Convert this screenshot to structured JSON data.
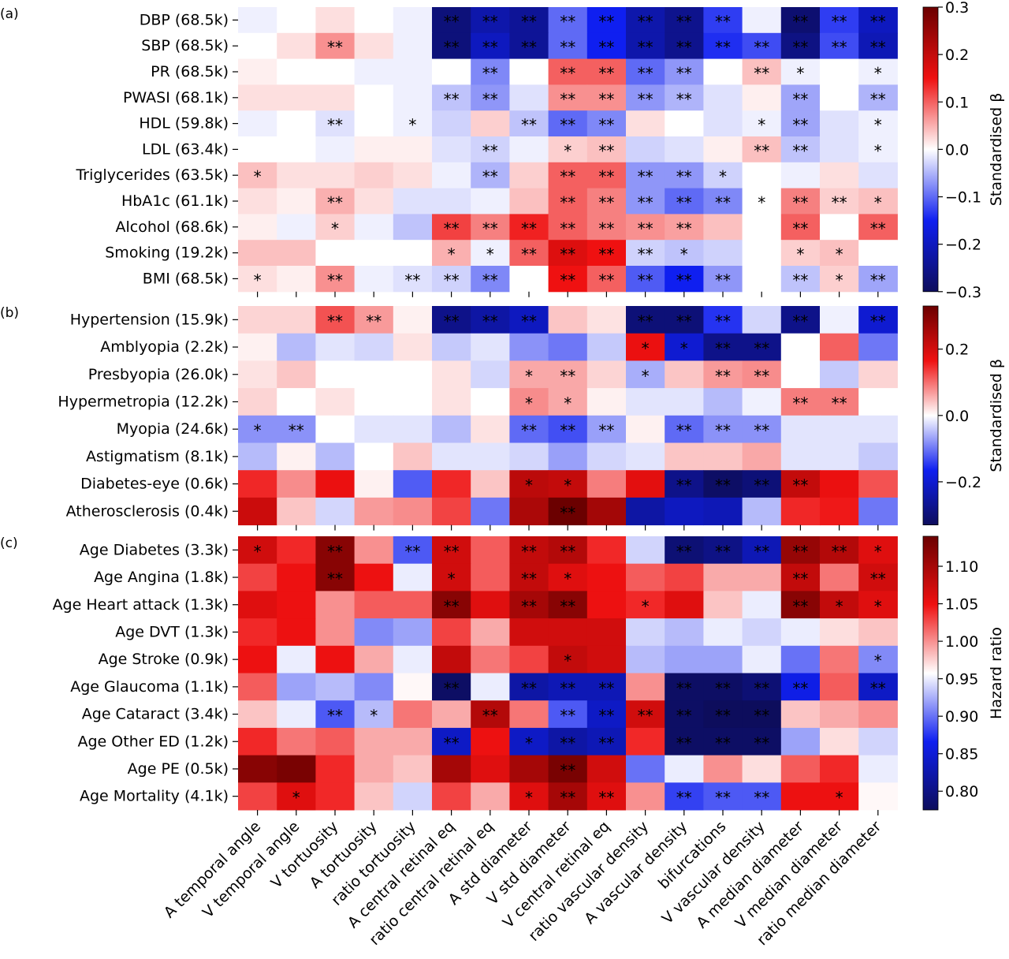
{
  "columns": [
    "A temporal angle",
    "V temporal angle",
    "V tortuosity",
    "A tortuosity",
    "ratio tortuosity",
    "A central retinal eq",
    "ratio central retinal eq",
    "A std diameter",
    "V std diameter",
    "V central retinal eq",
    "ratio vascular density",
    "A vascular density",
    "bifurcations",
    "V vascular density",
    "A median diameter",
    "V median diameter",
    "ratio median diameter"
  ],
  "colors": {
    "neg_dark": "#0d0d5c",
    "neg": "#0f1ff0",
    "neutral": "#ffffff",
    "pos": "#ef1111",
    "pos_dark": "#6b0000",
    "sig_light_text": "#ffffff",
    "sig_dark_text": "#000000"
  },
  "chart_data": [
    {
      "type": "heatmap",
      "panel_label": "(a)",
      "colorbar_label": "Standardised β",
      "vmin": -0.3,
      "vmax": 0.3,
      "colorbar_ticks": [
        "0.3",
        "0.2",
        "0.1",
        "0.0",
        "−0.1",
        "−0.2",
        "−0.3"
      ],
      "colorbar_tick_values": [
        0.3,
        0.2,
        0.1,
        0.0,
        -0.1,
        -0.2,
        -0.3
      ],
      "rows": [
        "DBP (68.5k)",
        "SBP (68.5k)",
        "PR (68.5k)",
        "PWASI (68.1k)",
        "HDL (59.8k)",
        "LDL (63.4k)",
        "Triglycerides (63.5k)",
        "HbA1c (61.1k)",
        "Alcohol (68.6k)",
        "Smoking (19.2k)",
        "BMI (68.5k)"
      ],
      "values": [
        [
          -0.01,
          0,
          0.02,
          0,
          -0.01,
          -0.27,
          -0.22,
          -0.24,
          -0.1,
          -0.15,
          -0.22,
          -0.25,
          -0.13,
          -0.01,
          -0.28,
          -0.13,
          -0.2
        ],
        [
          0,
          0.02,
          0.07,
          0.02,
          -0.01,
          -0.27,
          -0.2,
          -0.24,
          -0.1,
          -0.15,
          -0.22,
          -0.25,
          -0.14,
          -0.12,
          -0.26,
          -0.12,
          -0.21
        ],
        [
          0.01,
          0,
          0,
          -0.01,
          -0.01,
          0,
          -0.08,
          0,
          0.1,
          0.1,
          -0.1,
          -0.07,
          0,
          0.04,
          -0.01,
          0,
          -0.01
        ],
        [
          0.02,
          0.02,
          0.02,
          0,
          -0.01,
          -0.04,
          -0.07,
          -0.02,
          0.07,
          0.07,
          -0.07,
          -0.05,
          -0.02,
          0.01,
          -0.06,
          0,
          -0.05
        ],
        [
          -0.01,
          0,
          -0.02,
          0,
          -0.01,
          -0.03,
          0.03,
          -0.04,
          -0.1,
          -0.08,
          0.02,
          0,
          -0.02,
          -0.01,
          -0.06,
          -0.02,
          -0.01
        ],
        [
          0,
          0,
          -0.01,
          0.01,
          0.01,
          -0.02,
          -0.03,
          -0.01,
          0.03,
          0.04,
          -0.03,
          -0.02,
          0.01,
          0.04,
          -0.04,
          -0.02,
          -0.01
        ],
        [
          0.04,
          0.02,
          0.02,
          0.03,
          0.02,
          -0.01,
          -0.05,
          0.03,
          0.1,
          0.1,
          -0.07,
          -0.07,
          -0.03,
          0,
          -0.01,
          0.02,
          -0.02
        ],
        [
          0.02,
          0.01,
          0.05,
          0.02,
          -0.02,
          -0.02,
          -0.01,
          0.04,
          0.1,
          0.08,
          -0.07,
          -0.1,
          -0.08,
          0,
          0.08,
          0.03,
          0.04
        ],
        [
          0.01,
          -0.01,
          0.03,
          -0.01,
          -0.04,
          0.12,
          0.08,
          0.14,
          0.1,
          0.08,
          0.07,
          0.06,
          0.04,
          0,
          0.1,
          0,
          0.1
        ],
        [
          0.04,
          0.04,
          0,
          0,
          0,
          0.05,
          -0.01,
          0.1,
          0.17,
          0.15,
          -0.03,
          -0.04,
          -0.03,
          0,
          0.03,
          0.04,
          0
        ],
        [
          0.02,
          0.01,
          0.07,
          -0.01,
          -0.02,
          -0.03,
          -0.08,
          0,
          0.15,
          0.1,
          -0.11,
          -0.15,
          -0.07,
          0,
          -0.04,
          0.03,
          -0.06
        ]
      ],
      "significance": [
        [
          "",
          "",
          "",
          "",
          "",
          "**",
          "**",
          "**",
          "**",
          "**",
          "**",
          "**",
          "**",
          "",
          "**",
          "**",
          "**"
        ],
        [
          "",
          "",
          "**",
          "",
          "",
          "**",
          "**",
          "**",
          "**",
          "**",
          "**",
          "**",
          "**",
          "**",
          "**",
          "**",
          "**"
        ],
        [
          "",
          "",
          "",
          "",
          "",
          "",
          "**",
          "",
          "**",
          "**",
          "**",
          "**",
          "",
          "**",
          "*",
          "",
          "*"
        ],
        [
          "",
          "",
          "",
          "",
          "",
          "**",
          "**",
          "",
          "**",
          "**",
          "**",
          "**",
          "",
          "",
          "**",
          "",
          "**"
        ],
        [
          "",
          "",
          "**",
          "",
          "*",
          "",
          "",
          "**",
          "**",
          "**",
          "",
          "",
          "",
          "*",
          "**",
          "",
          "*"
        ],
        [
          "",
          "",
          "",
          "",
          "",
          "",
          "**",
          "",
          "*",
          "**",
          "",
          "",
          "",
          "**",
          "**",
          "",
          "*"
        ],
        [
          "*",
          "",
          "",
          "",
          "",
          "",
          "**",
          "",
          "**",
          "**",
          "**",
          "**",
          "*",
          "",
          "",
          "",
          ""
        ],
        [
          "",
          "",
          "**",
          "",
          "",
          "",
          "",
          "",
          "**",
          "**",
          "**",
          "**",
          "**",
          "*",
          "**",
          "**",
          "*"
        ],
        [
          "",
          "",
          "*",
          "",
          "",
          "**",
          "**",
          "**",
          "**",
          "**",
          "**",
          "**",
          "",
          "",
          "**",
          "",
          "**"
        ],
        [
          "",
          "",
          "",
          "",
          "",
          "*",
          "*",
          "**",
          "**",
          "**",
          "**",
          "*",
          "",
          "",
          "*",
          "*",
          ""
        ],
        [
          "*",
          "",
          "**",
          "",
          "**",
          "**",
          "**",
          "",
          "**",
          "**",
          "**",
          "**",
          "**",
          "",
          "**",
          "*",
          "**"
        ]
      ]
    },
    {
      "type": "heatmap",
      "panel_label": "(b)",
      "colorbar_label": "Standardised β",
      "vmin": -0.33,
      "vmax": 0.33,
      "colorbar_ticks": [
        "0.2",
        "0.0",
        "−0.2"
      ],
      "colorbar_tick_values": [
        0.2,
        0.0,
        -0.2
      ],
      "rows": [
        "Hypertension (15.9k)",
        "Amblyopia (2.2k)",
        "Presbyopia (26.0k)",
        "Hypermetropia (12.2k)",
        "Myopia (24.6k)",
        "Astigmatism (8.1k)",
        "Diabetes-eye (0.6k)",
        "Atherosclerosis (0.4k)"
      ],
      "values": [
        [
          0.03,
          0.03,
          0.12,
          0.07,
          0.01,
          -0.28,
          -0.25,
          -0.22,
          0.04,
          0.02,
          -0.3,
          -0.3,
          -0.15,
          -0.03,
          -0.28,
          -0.01,
          -0.2
        ],
        [
          0.01,
          -0.05,
          -0.02,
          -0.03,
          0.02,
          -0.04,
          -0.02,
          -0.08,
          -0.1,
          -0.04,
          0.17,
          -0.2,
          -0.28,
          -0.28,
          0,
          0.11,
          -0.1
        ],
        [
          0.02,
          0.04,
          0,
          0,
          0,
          0.02,
          -0.03,
          0.06,
          0.06,
          0.03,
          -0.06,
          0.04,
          0.07,
          0.08,
          0,
          -0.04,
          0.03
        ],
        [
          0.03,
          0,
          0.02,
          0,
          0,
          0.02,
          0,
          0.08,
          0.06,
          0.01,
          -0.02,
          -0.02,
          -0.05,
          -0.01,
          0.09,
          0.09,
          0
        ],
        [
          -0.08,
          -0.08,
          0,
          -0.02,
          -0.02,
          -0.05,
          0.02,
          -0.11,
          -0.13,
          -0.07,
          0.01,
          -0.11,
          -0.08,
          -0.08,
          -0.02,
          -0.02,
          -0.02
        ],
        [
          -0.05,
          0.01,
          -0.05,
          0,
          0.04,
          -0.02,
          -0.02,
          -0.03,
          -0.07,
          -0.03,
          -0.02,
          0.04,
          0.04,
          0.06,
          -0.02,
          -0.02,
          -0.04
        ],
        [
          0.15,
          0.08,
          0.17,
          0.01,
          -0.12,
          0.15,
          0.04,
          0.23,
          0.22,
          0.09,
          0.18,
          -0.28,
          -0.32,
          -0.3,
          0.22,
          0.17,
          0.12
        ],
        [
          0.21,
          0.04,
          -0.03,
          0.07,
          0.08,
          0.13,
          -0.1,
          0.25,
          0.33,
          0.26,
          -0.25,
          -0.22,
          -0.23,
          -0.05,
          0.15,
          0.16,
          -0.1
        ]
      ],
      "significance": [
        [
          "",
          "",
          "**",
          "**",
          "",
          "**",
          "**",
          "**",
          "",
          "",
          "**",
          "**",
          "**",
          "",
          "**",
          "",
          "**"
        ],
        [
          "",
          "",
          "",
          "",
          "",
          "",
          "",
          "",
          "",
          "",
          "*",
          "*",
          "**",
          "**",
          "",
          "",
          ""
        ],
        [
          "",
          "",
          "",
          "",
          "",
          "",
          "",
          "*",
          "**",
          "",
          "*",
          "",
          "**",
          "**",
          "",
          "",
          ""
        ],
        [
          "",
          "",
          "",
          "",
          "",
          "",
          "",
          "*",
          "*",
          "",
          "",
          "",
          "",
          "",
          "**",
          "**",
          ""
        ],
        [
          "*",
          "**",
          "",
          "",
          "",
          "",
          "",
          "**",
          "**",
          "**",
          "",
          "**",
          "**",
          "**",
          "",
          "",
          ""
        ],
        [
          "",
          "",
          "",
          "",
          "",
          "",
          "",
          "",
          "",
          "",
          "",
          "",
          "",
          "",
          "",
          "",
          ""
        ],
        [
          "",
          "",
          "",
          "",
          "",
          "",
          "",
          "*",
          "*",
          "",
          "",
          "**",
          "**",
          "**",
          "**",
          "",
          ""
        ],
        [
          "",
          "",
          "",
          "",
          "",
          "",
          "",
          "",
          "**",
          "",
          "",
          "",
          "",
          "",
          "",
          "",
          ""
        ]
      ]
    },
    {
      "type": "heatmap",
      "panel_label": "(c)",
      "colorbar_label": "Hazard ratio",
      "vmin": 0.775,
      "vmax": 1.14,
      "colorbar_ticks": [
        "1.10",
        "1.05",
        "1.00",
        "0.95",
        "0.90",
        "0.85",
        "0.80"
      ],
      "colorbar_tick_values": [
        1.1,
        1.05,
        1.0,
        0.95,
        0.9,
        0.85,
        0.8
      ],
      "rows": [
        "Age Diabetes (3.3k)",
        "Age Angina (1.8k)",
        "Age Heart attack (1.3k)",
        "Age DVT (1.3k)",
        "Age Stroke (0.9k)",
        "Age Glaucoma (1.1k)",
        "Age Cataract (3.4k)",
        "Age Other ED (1.2k)",
        "Age PE (0.5k)",
        "Age Mortality (4.1k)"
      ],
      "values": [
        [
          1.07,
          1.04,
          1.12,
          1.0,
          0.89,
          1.07,
          1.02,
          1.08,
          1.09,
          1.04,
          0.94,
          0.79,
          0.8,
          0.83,
          1.11,
          1.09,
          1.06
        ],
        [
          1.03,
          1.05,
          1.12,
          1.05,
          0.95,
          1.07,
          1.02,
          1.08,
          1.06,
          1.05,
          1.02,
          1.03,
          0.99,
          0.99,
          1.08,
          1.01,
          1.07
        ],
        [
          1.06,
          1.05,
          1.0,
          1.02,
          1.02,
          1.12,
          1.06,
          1.1,
          1.12,
          1.05,
          1.04,
          1.06,
          0.98,
          0.95,
          1.12,
          1.08,
          1.06
        ],
        [
          1.04,
          1.05,
          1.0,
          0.91,
          0.92,
          1.03,
          0.99,
          1.07,
          1.07,
          1.07,
          0.94,
          0.93,
          0.95,
          0.94,
          0.95,
          0.97,
          0.98
        ],
        [
          1.05,
          0.95,
          1.05,
          0.99,
          0.95,
          1.08,
          1.01,
          1.03,
          1.08,
          1.07,
          0.93,
          0.92,
          0.92,
          0.95,
          0.9,
          1.01,
          0.91
        ],
        [
          1.02,
          0.92,
          0.93,
          0.91,
          0.96,
          0.78,
          0.95,
          0.82,
          0.83,
          0.83,
          1.0,
          0.78,
          0.78,
          0.79,
          0.86,
          1.02,
          0.84
        ],
        [
          0.98,
          0.95,
          0.89,
          0.93,
          1.01,
          0.99,
          1.09,
          1.01,
          0.89,
          0.84,
          1.07,
          0.78,
          0.77,
          0.77,
          0.98,
          0.99,
          1.0
        ],
        [
          1.04,
          1.01,
          1.02,
          0.99,
          0.99,
          0.84,
          1.05,
          0.84,
          0.82,
          0.83,
          1.04,
          0.78,
          0.78,
          0.78,
          0.92,
          0.97,
          0.94
        ],
        [
          1.12,
          1.13,
          1.04,
          0.99,
          0.98,
          1.1,
          1.06,
          1.1,
          1.13,
          1.07,
          0.9,
          0.95,
          1.0,
          0.97,
          1.02,
          1.04,
          0.95
        ],
        [
          1.03,
          1.06,
          1.04,
          0.98,
          0.94,
          1.03,
          0.99,
          1.06,
          1.1,
          1.06,
          1.0,
          0.88,
          0.89,
          0.89,
          1.05,
          1.05,
          0.96
        ]
      ],
      "significance": [
        [
          "*",
          "",
          "**",
          "",
          "**",
          "**",
          "",
          "**",
          "**",
          "",
          "",
          "**",
          "**",
          "**",
          "**",
          "**",
          "*"
        ],
        [
          "",
          "",
          "**",
          "",
          "",
          "*",
          "",
          "**",
          "*",
          "",
          "",
          "",
          "",
          "",
          "**",
          "",
          "**"
        ],
        [
          "",
          "",
          "",
          "",
          "",
          "**",
          "",
          "**",
          "**",
          "",
          "*",
          "",
          "",
          "",
          "**",
          "*",
          "*"
        ],
        [
          "",
          "",
          "",
          "",
          "",
          "",
          "",
          "",
          "",
          "",
          "",
          "",
          "",
          "",
          "",
          "",
          ""
        ],
        [
          "",
          "",
          "",
          "",
          "",
          "",
          "",
          "",
          "*",
          "",
          "",
          "",
          "",
          "",
          "",
          "",
          "*"
        ],
        [
          "",
          "",
          "",
          "",
          "",
          "**",
          "",
          "**",
          "**",
          "**",
          "",
          "**",
          "**",
          "**",
          "**",
          "",
          "**"
        ],
        [
          "",
          "",
          "**",
          "*",
          "",
          "",
          "**",
          "",
          "**",
          "**",
          "**",
          "**",
          "**",
          "**",
          "",
          "",
          ""
        ],
        [
          "",
          "",
          "",
          "",
          "",
          "**",
          "",
          "*",
          "**",
          "**",
          "",
          "**",
          "**",
          "**",
          "",
          "",
          ""
        ],
        [
          "",
          "",
          "",
          "",
          "",
          "",
          "",
          "",
          "**",
          "",
          "",
          "",
          "",
          "",
          "",
          "",
          ""
        ],
        [
          "",
          "*",
          "",
          "",
          "",
          "",
          "",
          "*",
          "**",
          "**",
          "",
          "**",
          "**",
          "**",
          "",
          "*",
          ""
        ]
      ]
    }
  ]
}
